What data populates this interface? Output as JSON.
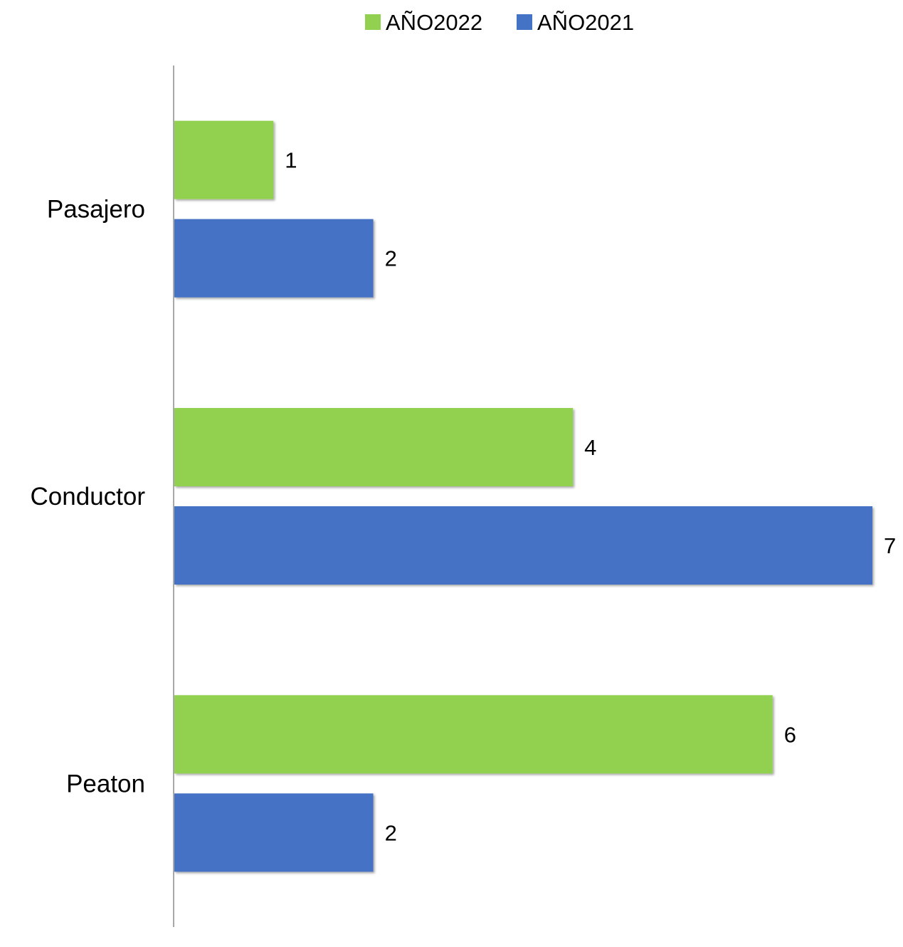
{
  "chart_data": {
    "type": "bar",
    "orientation": "horizontal",
    "title": "",
    "xlabel": "",
    "ylabel": "",
    "categories": [
      "Pasajero",
      "Conductor",
      "Peaton"
    ],
    "series": [
      {
        "name": "AÑO2022",
        "color": "#92d050",
        "values": [
          1,
          4,
          6
        ]
      },
      {
        "name": "AÑO2021",
        "color": "#4472c4",
        "values": [
          2,
          7,
          2
        ]
      }
    ],
    "xlim": [
      0,
      7
    ],
    "grid": false,
    "legend_position": "top",
    "data_labels": true
  }
}
